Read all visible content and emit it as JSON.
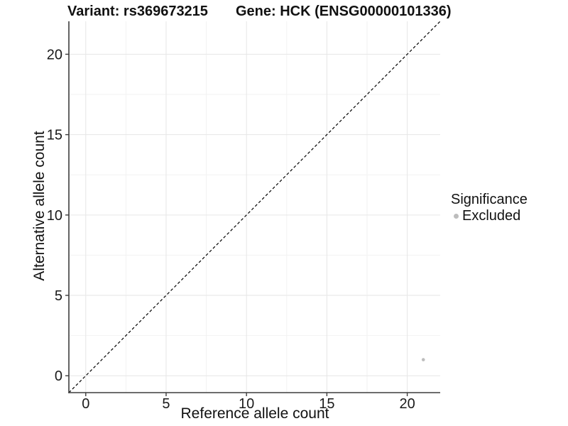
{
  "title": {
    "variant": "Variant: rs369673215",
    "gene": "Gene: HCK (ENSG00000101336)"
  },
  "axes": {
    "x_label": "Reference allele count",
    "y_label": "Alternative allele count"
  },
  "legend": {
    "title": "Significance",
    "items": [
      {
        "label": "Excluded",
        "color": "#bdbdbd"
      }
    ]
  },
  "colors": {
    "axis_line": "#3d3d3d",
    "tick_mark": "#3d3d3d",
    "tick_text": "#1a1a1a",
    "grid_major": "#e6e6e6",
    "grid_minor": "#f2f2f2",
    "reference_line": "#000000",
    "point": "#bdbdbd",
    "background": "#ffffff"
  },
  "chart_data": {
    "type": "scatter",
    "title": "Variant: rs369673215    Gene: HCK (ENSG00000101336)",
    "xlabel": "Reference allele count",
    "ylabel": "Alternative allele count",
    "xlim": [
      -1.05,
      22.05
    ],
    "ylim": [
      -1.05,
      22.05
    ],
    "x_ticks": [
      0,
      5,
      10,
      15,
      20
    ],
    "y_ticks": [
      0,
      5,
      10,
      15,
      20
    ],
    "x_minor_ticks": [
      2.5,
      7.5,
      12.5,
      17.5
    ],
    "y_minor_ticks": [
      2.5,
      7.5,
      12.5,
      17.5
    ],
    "grid": true,
    "legend_position": "right",
    "series": [
      {
        "name": "Excluded",
        "color": "#bdbdbd",
        "points": [
          {
            "x": 21,
            "y": 1
          }
        ]
      }
    ],
    "reference_line": {
      "type": "identity",
      "style": "dashed",
      "from": [
        -1.05,
        -1.05
      ],
      "to": [
        22.05,
        22.05
      ]
    }
  }
}
